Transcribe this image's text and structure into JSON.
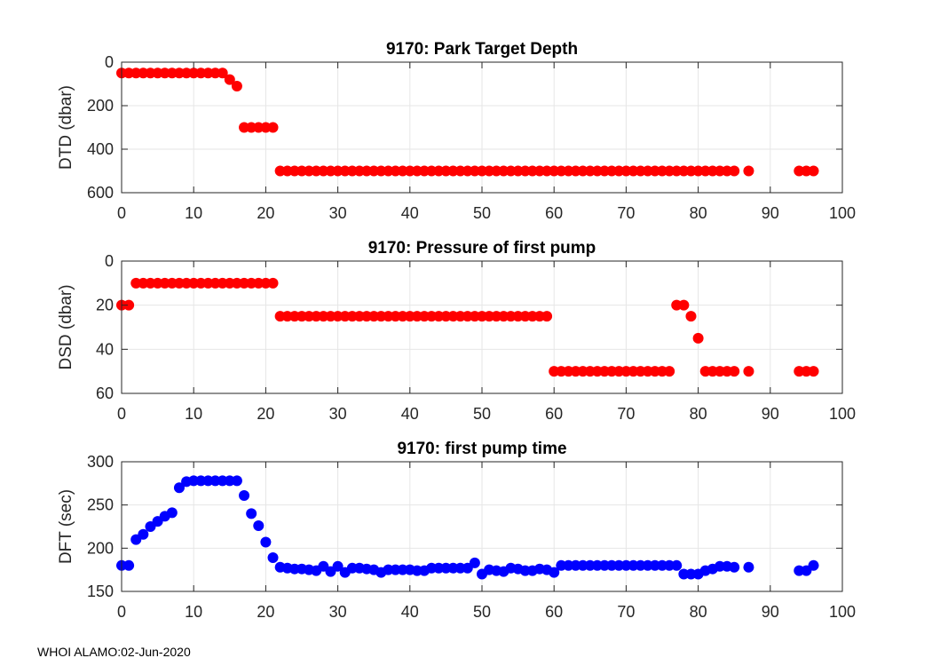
{
  "footer": "WHOI ALAMO:02-Jun-2020",
  "colors": {
    "red": "#ff0000",
    "blue": "#0000ff",
    "grid": "#e6e6e6",
    "axis": "#262626"
  },
  "chart_data": [
    {
      "type": "scatter",
      "title": "9170: Park Target Depth",
      "xlabel": "",
      "ylabel": "DTD (dbar)",
      "xlim": [
        0,
        100
      ],
      "ylim": [
        0,
        600
      ],
      "y_reversed": true,
      "xticks": [
        0,
        10,
        20,
        30,
        40,
        50,
        60,
        70,
        80,
        90,
        100
      ],
      "yticks": [
        0,
        200,
        400,
        600
      ],
      "grid": true,
      "color": "red",
      "x": [
        0,
        1,
        2,
        3,
        4,
        5,
        6,
        7,
        8,
        9,
        10,
        11,
        12,
        13,
        14,
        15,
        16,
        17,
        18,
        19,
        20,
        21,
        22,
        23,
        24,
        25,
        26,
        27,
        28,
        29,
        30,
        31,
        32,
        33,
        34,
        35,
        36,
        37,
        38,
        39,
        40,
        41,
        42,
        43,
        44,
        45,
        46,
        47,
        48,
        49,
        50,
        51,
        52,
        53,
        54,
        55,
        56,
        57,
        58,
        59,
        60,
        61,
        62,
        63,
        64,
        65,
        66,
        67,
        68,
        69,
        70,
        71,
        72,
        73,
        74,
        75,
        76,
        77,
        78,
        79,
        80,
        81,
        82,
        83,
        84,
        85,
        87,
        94,
        95,
        96
      ],
      "y": [
        50,
        50,
        50,
        50,
        50,
        50,
        50,
        50,
        50,
        50,
        50,
        50,
        50,
        50,
        50,
        80,
        110,
        300,
        300,
        300,
        300,
        300,
        500,
        500,
        500,
        500,
        500,
        500,
        500,
        500,
        500,
        500,
        500,
        500,
        500,
        500,
        500,
        500,
        500,
        500,
        500,
        500,
        500,
        500,
        500,
        500,
        500,
        500,
        500,
        500,
        500,
        500,
        500,
        500,
        500,
        500,
        500,
        500,
        500,
        500,
        500,
        500,
        500,
        500,
        500,
        500,
        500,
        500,
        500,
        500,
        500,
        500,
        500,
        500,
        500,
        500,
        500,
        500,
        500,
        500,
        500,
        500,
        500,
        500,
        500,
        500,
        500,
        500,
        500,
        500
      ]
    },
    {
      "type": "scatter",
      "title": "9170: Pressure of first pump",
      "xlabel": "",
      "ylabel": "DSD (dbar)",
      "xlim": [
        0,
        100
      ],
      "ylim": [
        0,
        60
      ],
      "y_reversed": true,
      "xticks": [
        0,
        10,
        20,
        30,
        40,
        50,
        60,
        70,
        80,
        90,
        100
      ],
      "yticks": [
        0,
        20,
        40,
        60
      ],
      "grid": true,
      "color": "red",
      "x": [
        0,
        1,
        2,
        3,
        4,
        5,
        6,
        7,
        8,
        9,
        10,
        11,
        12,
        13,
        14,
        15,
        16,
        17,
        18,
        19,
        20,
        21,
        22,
        23,
        24,
        25,
        26,
        27,
        28,
        29,
        30,
        31,
        32,
        33,
        34,
        35,
        36,
        37,
        38,
        39,
        40,
        41,
        42,
        43,
        44,
        45,
        46,
        47,
        48,
        49,
        50,
        51,
        52,
        53,
        54,
        55,
        56,
        57,
        58,
        59,
        60,
        61,
        62,
        63,
        64,
        65,
        66,
        67,
        68,
        69,
        70,
        71,
        72,
        73,
        74,
        75,
        76,
        77,
        78,
        79,
        80,
        81,
        82,
        83,
        84,
        85,
        87,
        94,
        95,
        96
      ],
      "y": [
        20,
        20,
        10,
        10,
        10,
        10,
        10,
        10,
        10,
        10,
        10,
        10,
        10,
        10,
        10,
        10,
        10,
        10,
        10,
        10,
        10,
        10,
        25,
        25,
        25,
        25,
        25,
        25,
        25,
        25,
        25,
        25,
        25,
        25,
        25,
        25,
        25,
        25,
        25,
        25,
        25,
        25,
        25,
        25,
        25,
        25,
        25,
        25,
        25,
        25,
        25,
        25,
        25,
        25,
        25,
        25,
        25,
        25,
        25,
        25,
        50,
        50,
        50,
        50,
        50,
        50,
        50,
        50,
        50,
        50,
        50,
        50,
        50,
        50,
        50,
        50,
        50,
        20,
        20,
        25,
        35,
        50,
        50,
        50,
        50,
        50,
        50,
        50,
        50,
        50
      ]
    },
    {
      "type": "scatter",
      "title": "9170: first pump time",
      "xlabel": "",
      "ylabel": "DFT (sec)",
      "xlim": [
        0,
        100
      ],
      "ylim": [
        150,
        300
      ],
      "y_reversed": false,
      "xticks": [
        0,
        10,
        20,
        30,
        40,
        50,
        60,
        70,
        80,
        90,
        100
      ],
      "yticks": [
        150,
        200,
        250,
        300
      ],
      "grid": true,
      "color": "blue",
      "x": [
        0,
        1,
        2,
        3,
        4,
        5,
        6,
        7,
        8,
        9,
        10,
        11,
        12,
        13,
        14,
        15,
        16,
        17,
        18,
        19,
        20,
        21,
        22,
        23,
        24,
        25,
        26,
        27,
        28,
        29,
        30,
        31,
        32,
        33,
        34,
        35,
        36,
        37,
        38,
        39,
        40,
        41,
        42,
        43,
        44,
        45,
        46,
        47,
        48,
        49,
        50,
        51,
        52,
        53,
        54,
        55,
        56,
        57,
        58,
        59,
        60,
        61,
        62,
        63,
        64,
        65,
        66,
        67,
        68,
        69,
        70,
        71,
        72,
        73,
        74,
        75,
        76,
        77,
        78,
        79,
        80,
        81,
        82,
        83,
        84,
        85,
        87,
        94,
        95,
        96
      ],
      "y": [
        180,
        180,
        210,
        216,
        225,
        231,
        237,
        241,
        270,
        277,
        278,
        278,
        278,
        278,
        278,
        278,
        278,
        261,
        240,
        226,
        207,
        189,
        178,
        177,
        176,
        176,
        175,
        174,
        179,
        173,
        179,
        172,
        177,
        177,
        176,
        175,
        172,
        175,
        175,
        175,
        175,
        174,
        174,
        177,
        177,
        177,
        177,
        177,
        177,
        183,
        170,
        175,
        174,
        173,
        177,
        176,
        174,
        174,
        176,
        175,
        172,
        180,
        180,
        180,
        180,
        180,
        180,
        180,
        180,
        180,
        180,
        180,
        180,
        180,
        180,
        180,
        180,
        180,
        170,
        170,
        170,
        174,
        176,
        179,
        179,
        178,
        178,
        174,
        174,
        180
      ]
    }
  ]
}
